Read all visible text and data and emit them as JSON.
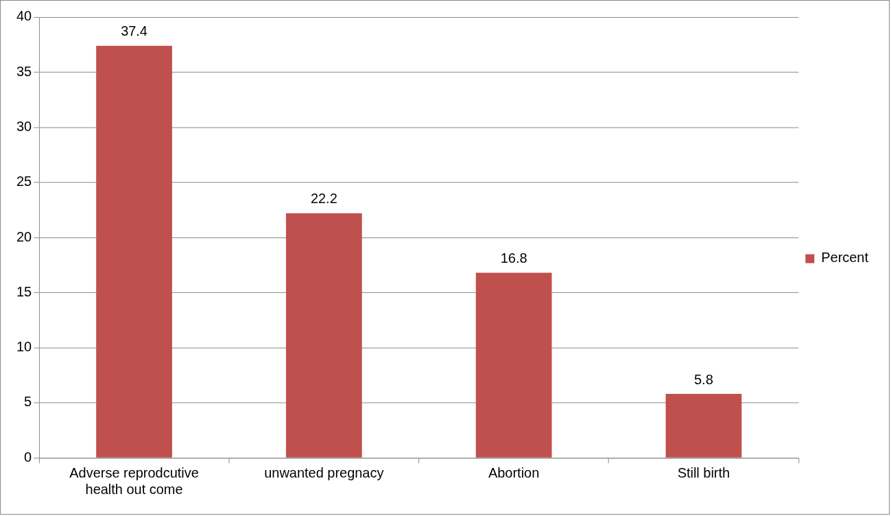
{
  "chart_data": {
    "type": "bar",
    "categories": [
      "Adverse reprodcutive health out come",
      "unwanted pregnacy",
      "Abortion",
      "Still birth"
    ],
    "series": [
      {
        "name": "Percent",
        "color": "#c0504d",
        "values": [
          37.4,
          22.2,
          16.8,
          5.8
        ]
      }
    ],
    "ylim": [
      0,
      40
    ],
    "yticks": [
      0,
      5,
      10,
      15,
      20,
      25,
      30,
      35,
      40
    ],
    "grid": "y",
    "legend": "right",
    "data_labels": true
  }
}
